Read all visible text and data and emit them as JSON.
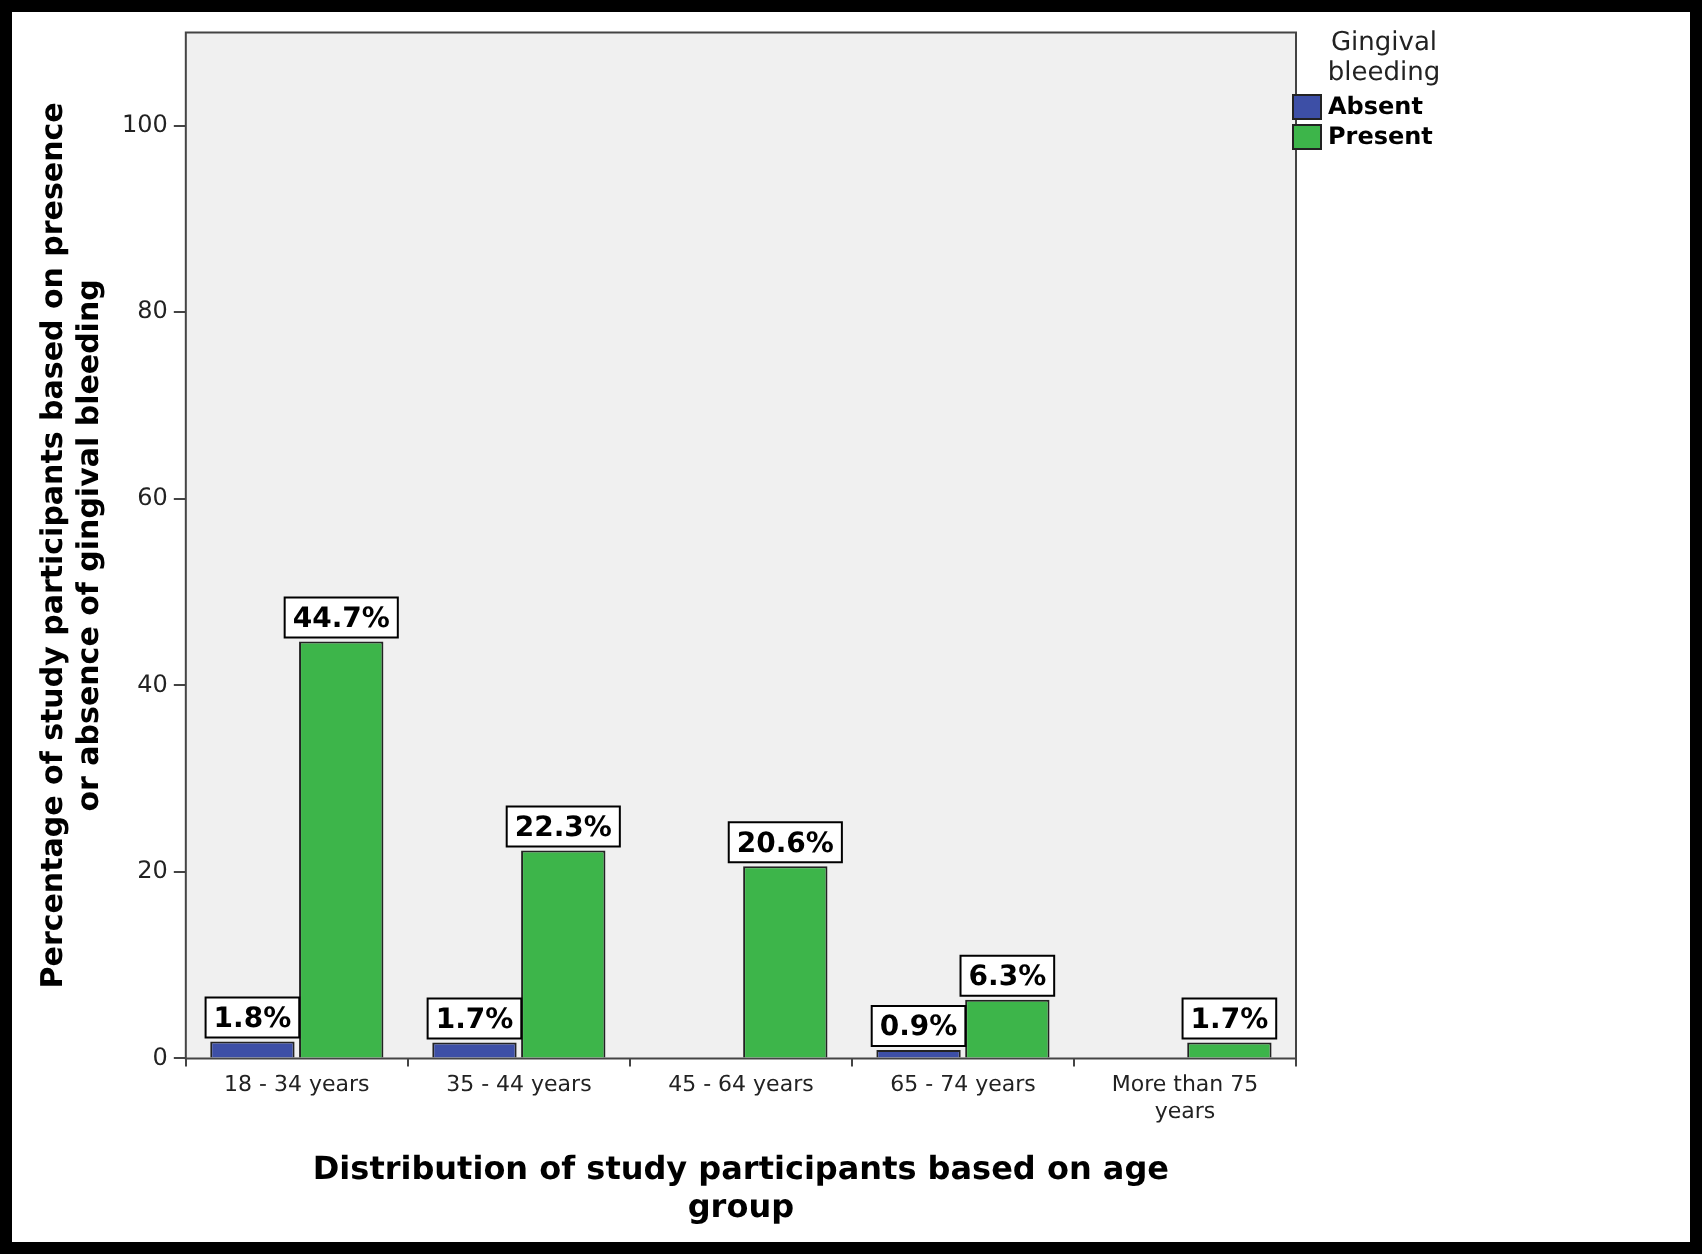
{
  "chart_data": {
    "type": "bar",
    "xlabel": "Distribution of study participants based on age group",
    "ylabel": "Percentage of study participants based on presence or absence of gingival bleeding",
    "legend_title": "Gingival bleeding",
    "legend": "top right",
    "categories": [
      "18 - 34 years",
      "35 - 44 years",
      "45 - 64 years",
      "65 - 74 years",
      "More than 75 years"
    ],
    "series": [
      {
        "name": "Absent",
        "color": "#3d4fa6",
        "values": [
          1.8,
          1.7,
          null,
          0.9,
          null
        ],
        "value_labels": [
          "1.8%",
          "1.7%",
          null,
          "0.9%",
          null
        ]
      },
      {
        "name": "Present",
        "color": "#3db54a",
        "values": [
          44.7,
          22.3,
          20.6,
          6.3,
          1.7
        ],
        "value_labels": [
          "44.7%",
          "22.3%",
          "20.6%",
          "6.3%",
          "1.7%"
        ]
      }
    ],
    "ylim": [
      0,
      110
    ],
    "yticks": [
      0,
      20,
      40,
      60,
      80,
      100
    ]
  }
}
